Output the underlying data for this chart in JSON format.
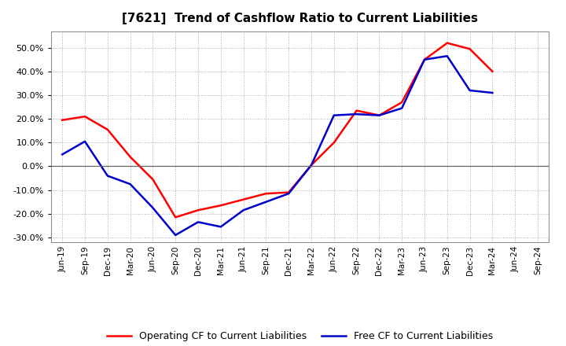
{
  "title": "[7621]  Trend of Cashflow Ratio to Current Liabilities",
  "x_labels": [
    "Jun-19",
    "Sep-19",
    "Dec-19",
    "Mar-20",
    "Jun-20",
    "Sep-20",
    "Dec-20",
    "Mar-21",
    "Jun-21",
    "Sep-21",
    "Dec-21",
    "Mar-22",
    "Jun-22",
    "Sep-22",
    "Dec-22",
    "Mar-23",
    "Jun-23",
    "Sep-23",
    "Dec-23",
    "Mar-24",
    "Jun-24",
    "Sep-24"
  ],
  "operating_cf": [
    0.195,
    0.21,
    0.155,
    0.04,
    -0.055,
    -0.215,
    -0.185,
    -0.165,
    -0.14,
    -0.115,
    -0.11,
    0.005,
    0.1,
    0.235,
    0.215,
    0.27,
    0.45,
    0.52,
    0.495,
    0.4,
    null,
    null
  ],
  "free_cf": [
    0.05,
    0.105,
    -0.04,
    -0.075,
    -0.175,
    -0.29,
    -0.235,
    -0.255,
    -0.185,
    -0.15,
    -0.115,
    0.005,
    0.215,
    0.22,
    0.215,
    0.245,
    0.45,
    0.465,
    0.32,
    0.31,
    null,
    null
  ],
  "operating_cf_color": "#FF0000",
  "free_cf_color": "#0000CD",
  "ylim": [
    -0.32,
    0.57
  ],
  "yticks": [
    -0.3,
    -0.2,
    -0.1,
    0.0,
    0.1,
    0.2,
    0.3,
    0.4,
    0.5
  ],
  "background_color": "#FFFFFF",
  "plot_bg_color": "#FFFFFF",
  "grid_color": "#AAAAAA",
  "legend_operating": "Operating CF to Current Liabilities",
  "legend_free": "Free CF to Current Liabilities",
  "title_fontsize": 11,
  "line_width": 1.8
}
